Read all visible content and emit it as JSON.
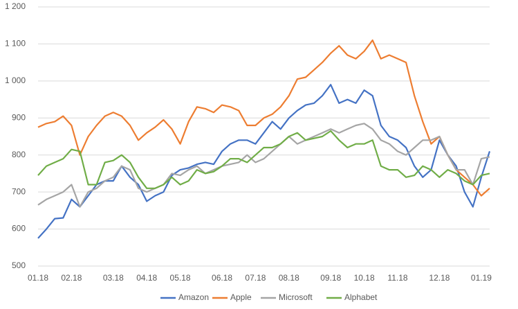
{
  "chart_data": {
    "type": "line",
    "categories": [
      "01.18",
      null,
      null,
      null,
      "02.18",
      null,
      null,
      null,
      null,
      "03.18",
      null,
      null,
      null,
      "04.18",
      null,
      null,
      null,
      "05.18",
      null,
      null,
      null,
      null,
      "06.18",
      null,
      null,
      null,
      "07.18",
      null,
      null,
      null,
      "08.18",
      null,
      null,
      null,
      null,
      "09.18",
      null,
      null,
      null,
      "10.18",
      null,
      null,
      null,
      "11.18",
      null,
      null,
      null,
      null,
      "12.18",
      null,
      null,
      null,
      null,
      "01.19",
      null
    ],
    "series": [
      {
        "name": "Amazon",
        "color": "#4472c4",
        "values": [
          575,
          600,
          628,
          630,
          680,
          660,
          690,
          720,
          730,
          730,
          770,
          740,
          720,
          675,
          690,
          700,
          745,
          760,
          765,
          775,
          780,
          775,
          810,
          830,
          840,
          840,
          830,
          860,
          890,
          870,
          900,
          920,
          935,
          940,
          960,
          990,
          940,
          950,
          940,
          975,
          960,
          880,
          850,
          840,
          820,
          770,
          740,
          760,
          840,
          800,
          770,
          700,
          660,
          740,
          810
        ]
      },
      {
        "name": "Apple",
        "color": "#ed7d31",
        "values": [
          875,
          885,
          890,
          905,
          880,
          800,
          850,
          880,
          905,
          915,
          905,
          880,
          840,
          860,
          875,
          895,
          870,
          830,
          890,
          930,
          925,
          915,
          935,
          930,
          920,
          880,
          880,
          900,
          910,
          930,
          960,
          1005,
          1010,
          1030,
          1050,
          1075,
          1095,
          1070,
          1060,
          1080,
          1110,
          1060,
          1070,
          1060,
          1050,
          960,
          890,
          830,
          850,
          800,
          760,
          740,
          720,
          690,
          710
        ]
      },
      {
        "name": "Microsoft",
        "color": "#a5a5a5",
        "values": [
          665,
          680,
          690,
          700,
          720,
          660,
          700,
          710,
          730,
          740,
          770,
          760,
          710,
          700,
          710,
          720,
          750,
          745,
          760,
          770,
          750,
          760,
          770,
          775,
          780,
          800,
          780,
          790,
          810,
          830,
          850,
          830,
          840,
          850,
          860,
          870,
          860,
          870,
          880,
          885,
          870,
          840,
          830,
          810,
          800,
          820,
          840,
          840,
          850,
          800,
          760,
          760,
          720,
          790,
          795
        ]
      },
      {
        "name": "Alphabet",
        "color": "#70ad47",
        "values": [
          745,
          770,
          780,
          790,
          815,
          810,
          720,
          720,
          780,
          785,
          800,
          780,
          740,
          710,
          710,
          720,
          740,
          720,
          730,
          760,
          750,
          755,
          770,
          790,
          790,
          780,
          800,
          820,
          820,
          830,
          850,
          860,
          840,
          845,
          850,
          865,
          840,
          820,
          830,
          830,
          840,
          770,
          760,
          760,
          740,
          745,
          770,
          760,
          740,
          760,
          750,
          730,
          720,
          745,
          750
        ]
      }
    ],
    "ylim": [
      500,
      1200
    ],
    "yticks": [
      500,
      600,
      700,
      800,
      900,
      {
        "value": 1000,
        "label": "1 000"
      },
      {
        "value": 1100,
        "label": "1 100"
      },
      {
        "value": 1200,
        "label": "1 200"
      }
    ],
    "grid": true,
    "legend": "bottom"
  }
}
